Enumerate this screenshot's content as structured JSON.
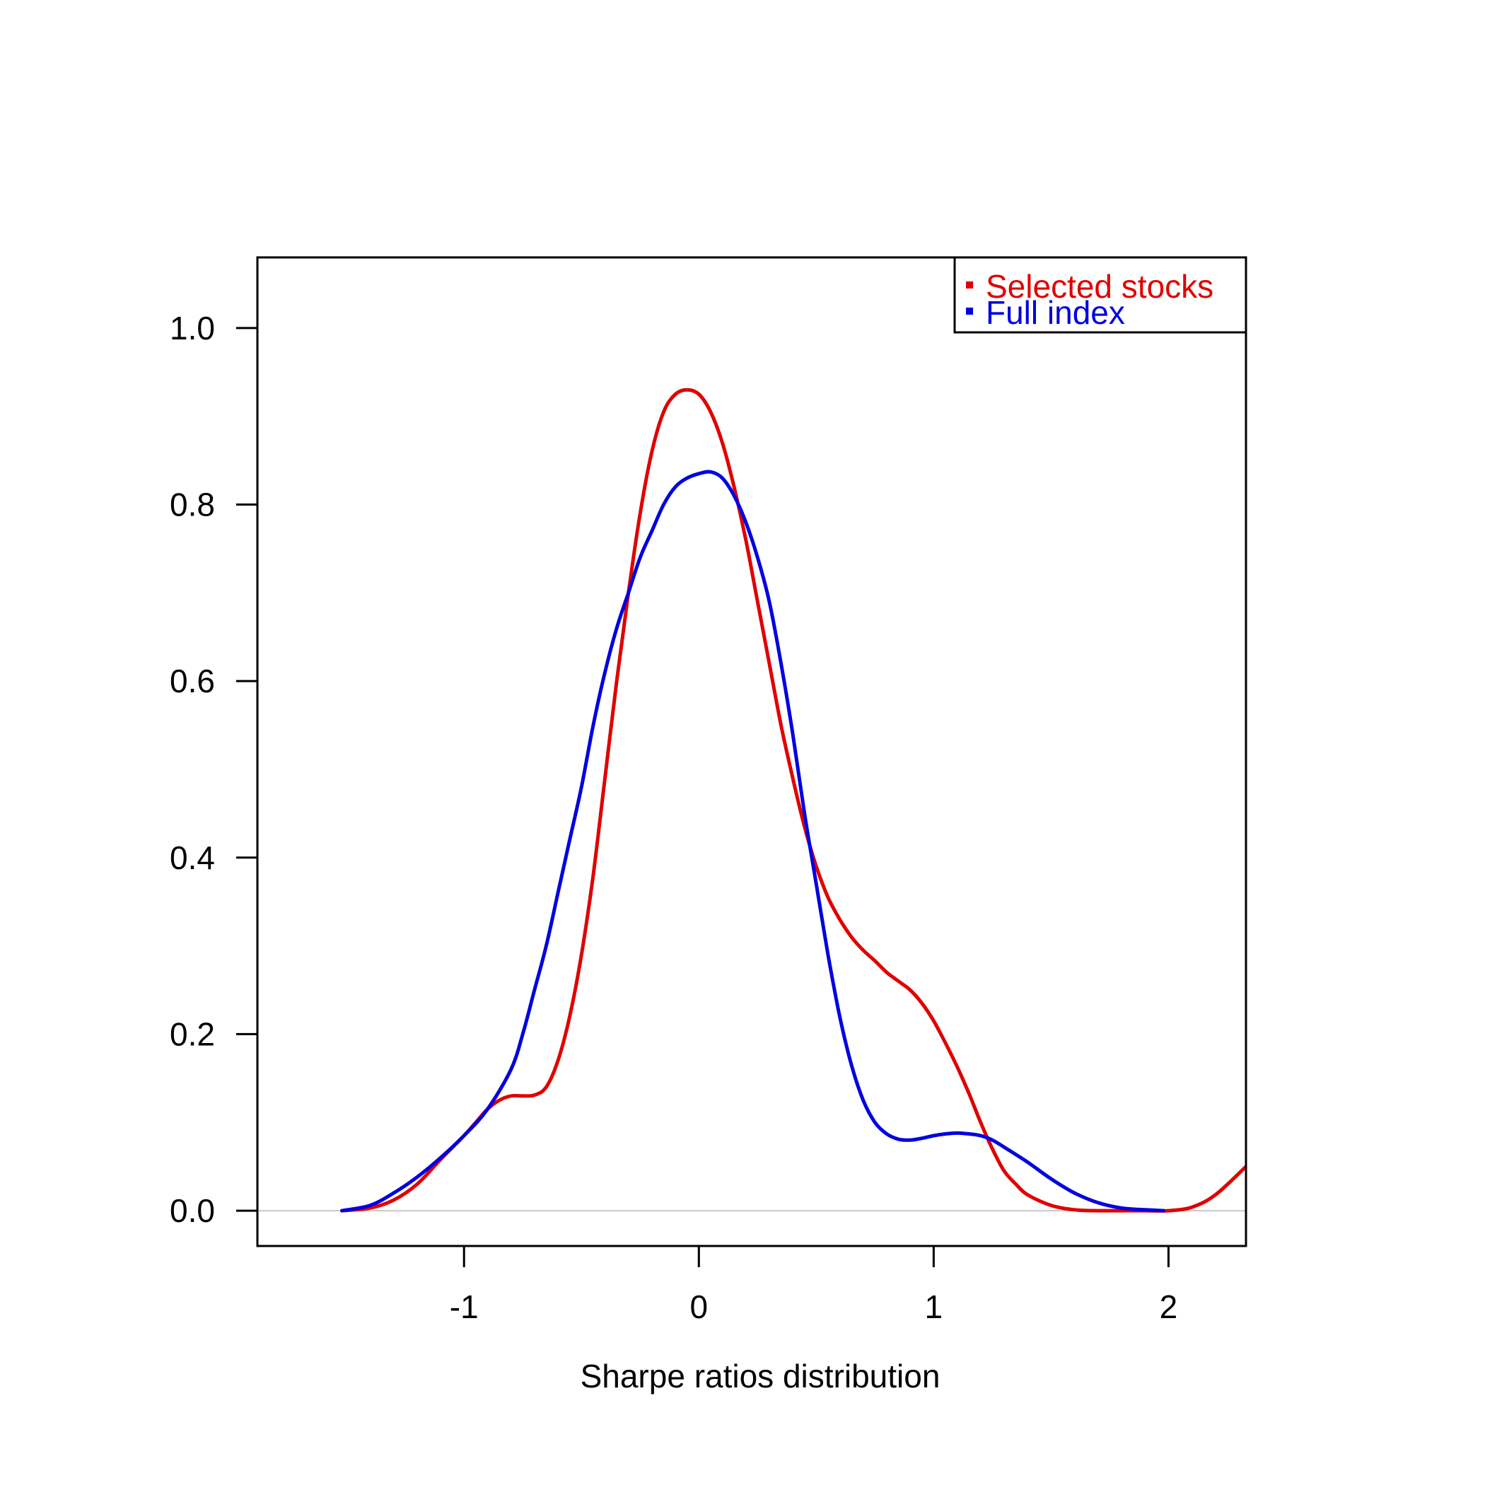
{
  "chart_data": {
    "type": "line",
    "title": "",
    "xlabel": "Sharpe ratios distribution",
    "ylabel": "",
    "xlim": [
      -1.88,
      2.33
    ],
    "ylim": [
      -0.04,
      1.08
    ],
    "x_ticks": [
      -1,
      0,
      1,
      2
    ],
    "x_tick_labels": [
      "-1",
      "0",
      "1",
      "2"
    ],
    "y_ticks": [
      0.0,
      0.2,
      0.4,
      0.6,
      0.8,
      1.0
    ],
    "y_tick_labels": [
      "0.0",
      "0.2",
      "0.4",
      "0.6",
      "0.8",
      "1.0"
    ],
    "grid": false,
    "baseline": {
      "y": 0.0,
      "color": "#c8c8c8"
    },
    "legend": {
      "position": "top-right",
      "entries": [
        "Selected stocks",
        "Full index"
      ]
    },
    "series": [
      {
        "name": "Selected stocks",
        "color": "#e00000",
        "x": [
          -1.52,
          -1.4,
          -1.3,
          -1.2,
          -1.1,
          -1.0,
          -0.95,
          -0.9,
          -0.85,
          -0.8,
          -0.75,
          -0.7,
          -0.65,
          -0.6,
          -0.55,
          -0.5,
          -0.45,
          -0.4,
          -0.35,
          -0.3,
          -0.25,
          -0.2,
          -0.15,
          -0.1,
          -0.05,
          0.0,
          0.05,
          0.1,
          0.15,
          0.2,
          0.25,
          0.3,
          0.35,
          0.4,
          0.45,
          0.5,
          0.55,
          0.6,
          0.65,
          0.7,
          0.75,
          0.8,
          0.85,
          0.9,
          0.95,
          1.0,
          1.05,
          1.1,
          1.15,
          1.2,
          1.25,
          1.3,
          1.35,
          1.4,
          1.5,
          1.6,
          1.7,
          1.8,
          1.9,
          2.0,
          2.1,
          2.2,
          2.33
        ],
        "y": [
          0.0,
          0.003,
          0.012,
          0.03,
          0.058,
          0.085,
          0.1,
          0.115,
          0.125,
          0.13,
          0.13,
          0.131,
          0.14,
          0.17,
          0.22,
          0.29,
          0.38,
          0.49,
          0.6,
          0.7,
          0.79,
          0.86,
          0.905,
          0.925,
          0.93,
          0.925,
          0.905,
          0.87,
          0.82,
          0.76,
          0.69,
          0.62,
          0.55,
          0.49,
          0.435,
          0.39,
          0.355,
          0.33,
          0.31,
          0.295,
          0.283,
          0.27,
          0.26,
          0.25,
          0.235,
          0.215,
          0.19,
          0.163,
          0.133,
          0.1,
          0.07,
          0.045,
          0.03,
          0.018,
          0.006,
          0.001,
          0.0,
          0.0,
          0.0,
          0.0,
          0.004,
          0.018,
          0.05
        ]
      },
      {
        "name": "Full index",
        "color": "#0000e0",
        "x": [
          -1.52,
          -1.4,
          -1.3,
          -1.2,
          -1.1,
          -1.0,
          -0.9,
          -0.8,
          -0.75,
          -0.7,
          -0.65,
          -0.6,
          -0.55,
          -0.5,
          -0.45,
          -0.4,
          -0.35,
          -0.3,
          -0.25,
          -0.2,
          -0.15,
          -0.1,
          -0.05,
          0.0,
          0.05,
          0.1,
          0.15,
          0.2,
          0.25,
          0.3,
          0.35,
          0.4,
          0.45,
          0.5,
          0.55,
          0.6,
          0.65,
          0.7,
          0.75,
          0.8,
          0.85,
          0.9,
          0.95,
          1.0,
          1.05,
          1.1,
          1.15,
          1.2,
          1.25,
          1.3,
          1.4,
          1.5,
          1.6,
          1.7,
          1.8,
          1.9,
          1.98
        ],
        "y": [
          0.0,
          0.006,
          0.02,
          0.038,
          0.06,
          0.085,
          0.115,
          0.16,
          0.2,
          0.25,
          0.3,
          0.36,
          0.42,
          0.48,
          0.55,
          0.61,
          0.66,
          0.7,
          0.74,
          0.77,
          0.8,
          0.82,
          0.83,
          0.835,
          0.837,
          0.83,
          0.81,
          0.78,
          0.74,
          0.69,
          0.62,
          0.54,
          0.45,
          0.37,
          0.29,
          0.22,
          0.165,
          0.125,
          0.1,
          0.087,
          0.081,
          0.08,
          0.082,
          0.085,
          0.087,
          0.088,
          0.087,
          0.085,
          0.08,
          0.072,
          0.055,
          0.036,
          0.02,
          0.009,
          0.003,
          0.001,
          0.0
        ]
      }
    ]
  }
}
